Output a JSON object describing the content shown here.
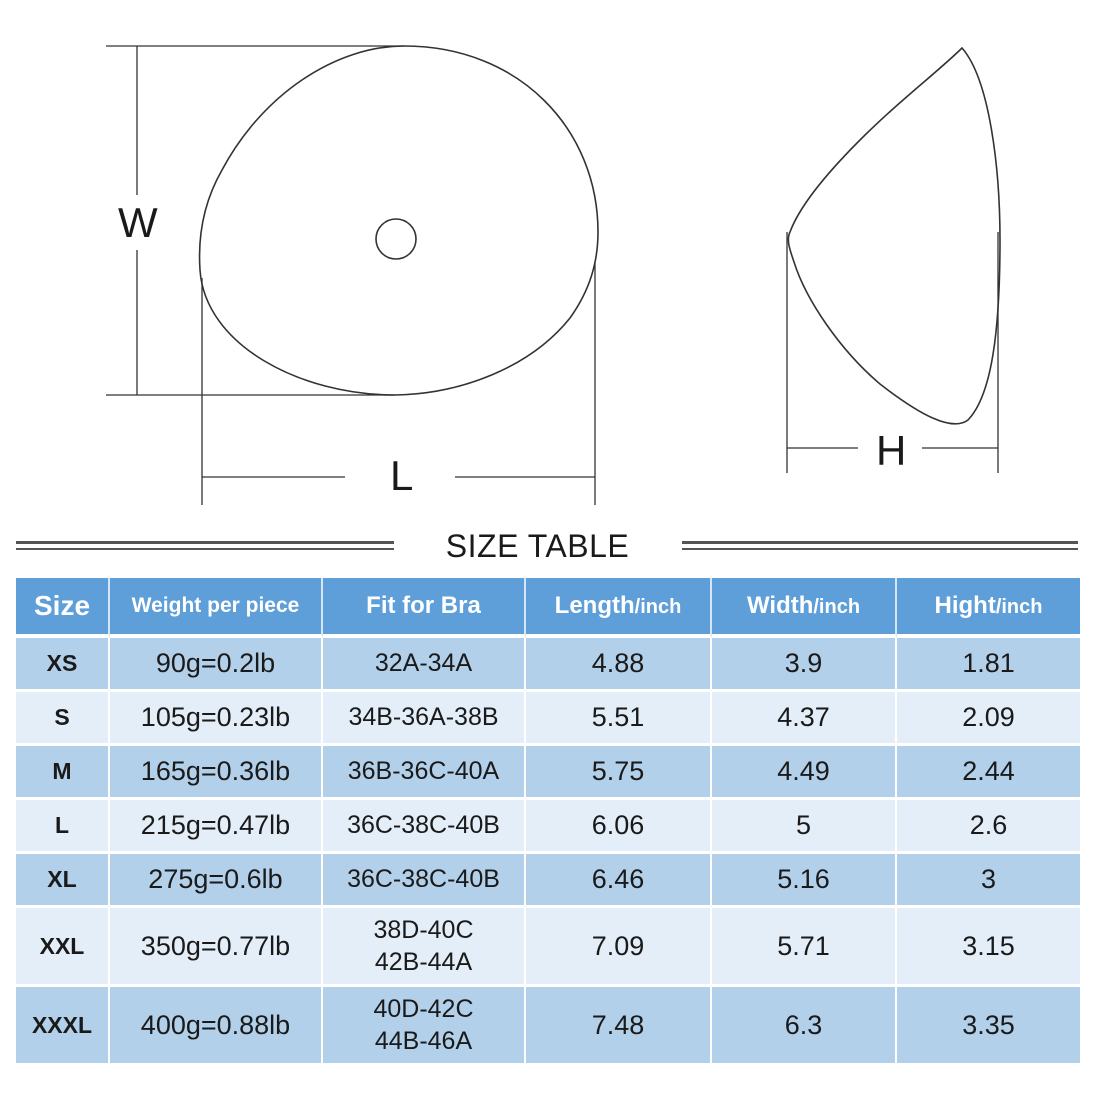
{
  "diagram": {
    "width_label": "W",
    "length_label": "L",
    "height_label": "H"
  },
  "table": {
    "title": "SIZE TABLE",
    "headers": {
      "size": "Size",
      "weight": "Weight per piece",
      "fit": "Fit for Bra",
      "length": "Length",
      "width": "Width",
      "height": "Hight",
      "unit": "/inch"
    },
    "rows": [
      {
        "size": "XS",
        "weight": "90g=0.2lb",
        "fit": [
          "32A-34A"
        ],
        "length": "4.88",
        "width": "3.9",
        "height": "1.81"
      },
      {
        "size": "S",
        "weight": "105g=0.23lb",
        "fit": [
          "34B-36A-38B"
        ],
        "length": "5.51",
        "width": "4.37",
        "height": "2.09"
      },
      {
        "size": "M",
        "weight": "165g=0.36lb",
        "fit": [
          "36B-36C-40A"
        ],
        "length": "5.75",
        "width": "4.49",
        "height": "2.44"
      },
      {
        "size": "L",
        "weight": "215g=0.47lb",
        "fit": [
          "36C-38C-40B"
        ],
        "length": "6.06",
        "width": "5",
        "height": "2.6"
      },
      {
        "size": "XL",
        "weight": "275g=0.6lb",
        "fit": [
          "36C-38C-40B"
        ],
        "length": "6.46",
        "width": "5.16",
        "height": "3"
      },
      {
        "size": "XXL",
        "weight": "350g=0.77lb",
        "fit": [
          "38D-40C",
          "42B-44A"
        ],
        "length": "7.09",
        "width": "5.71",
        "height": "3.15"
      },
      {
        "size": "XXXL",
        "weight": "400g=0.88lb",
        "fit": [
          "40D-42C",
          "44B-46A"
        ],
        "length": "7.48",
        "width": "6.3",
        "height": "3.35"
      }
    ]
  }
}
